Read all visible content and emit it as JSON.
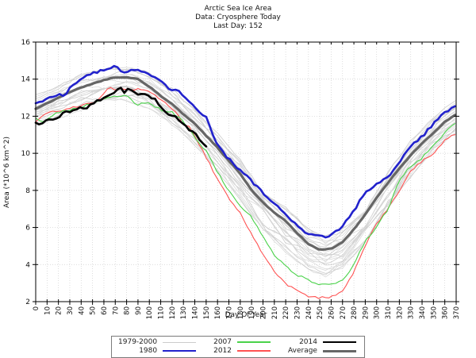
{
  "title": {
    "line1": "Arctic Sea Ice Area",
    "line2": "Data: Cryosphere Today",
    "line3": "Last Day: 152"
  },
  "chart_data": {
    "type": "line",
    "title": "Arctic Sea Ice Area",
    "subtitle": "Data: Cryosphere Today",
    "annotation": "Last Day: 152",
    "xlabel": "Day Of Year",
    "ylabel": "Area (*10^6 km^2)",
    "xlim": [
      0,
      370
    ],
    "ylim": [
      2,
      16
    ],
    "grid": true,
    "legend_position": "bottom-outside",
    "xticks": [
      0,
      10,
      20,
      30,
      40,
      50,
      60,
      70,
      80,
      90,
      100,
      110,
      120,
      130,
      140,
      150,
      160,
      170,
      180,
      190,
      200,
      210,
      220,
      230,
      240,
      250,
      260,
      270,
      280,
      290,
      300,
      310,
      320,
      330,
      340,
      350,
      360,
      370
    ],
    "yticks": [
      2,
      4,
      6,
      8,
      10,
      12,
      14,
      16
    ],
    "series": [
      {
        "name": "1979-2000",
        "kind": "ensemble",
        "color": "#cccccc",
        "color_alt": "#dadada",
        "width": 0.8,
        "count": 22,
        "band_x": [
          0,
          20,
          40,
          60,
          80,
          100,
          120,
          140,
          160,
          180,
          200,
          220,
          240,
          255,
          270,
          290,
          310,
          330,
          350,
          370
        ],
        "band_lower": [
          11.3,
          11.8,
          12.3,
          12.7,
          12.8,
          12.4,
          11.5,
          10.4,
          9.0,
          7.4,
          5.9,
          4.6,
          3.7,
          3.3,
          3.7,
          5.2,
          7.0,
          8.7,
          10.0,
          11.0
        ],
        "band_upper": [
          13.3,
          13.8,
          14.3,
          14.6,
          14.7,
          14.4,
          13.5,
          12.4,
          11.1,
          9.7,
          8.3,
          7.1,
          6.0,
          5.6,
          6.0,
          7.2,
          9.0,
          10.7,
          12.0,
          12.9
        ]
      },
      {
        "name": "Average",
        "kind": "line",
        "color": "#666666",
        "width": 3.2,
        "points": [
          [
            0,
            12.4
          ],
          [
            10,
            12.7
          ],
          [
            20,
            13.0
          ],
          [
            30,
            13.3
          ],
          [
            40,
            13.55
          ],
          [
            50,
            13.75
          ],
          [
            60,
            13.95
          ],
          [
            70,
            14.1
          ],
          [
            80,
            14.1
          ],
          [
            90,
            14.0
          ],
          [
            100,
            13.6
          ],
          [
            110,
            13.1
          ],
          [
            120,
            12.65
          ],
          [
            130,
            12.1
          ],
          [
            140,
            11.6
          ],
          [
            150,
            10.95
          ],
          [
            160,
            10.3
          ],
          [
            170,
            9.6
          ],
          [
            180,
            8.9
          ],
          [
            190,
            8.0
          ],
          [
            200,
            7.35
          ],
          [
            210,
            6.8
          ],
          [
            220,
            6.35
          ],
          [
            230,
            5.7
          ],
          [
            240,
            5.1
          ],
          [
            250,
            4.8
          ],
          [
            260,
            4.85
          ],
          [
            270,
            5.2
          ],
          [
            280,
            5.9
          ],
          [
            290,
            6.7
          ],
          [
            300,
            7.6
          ],
          [
            310,
            8.4
          ],
          [
            320,
            9.2
          ],
          [
            330,
            9.9
          ],
          [
            340,
            10.55
          ],
          [
            350,
            11.1
          ],
          [
            360,
            11.7
          ],
          [
            370,
            12.1
          ]
        ]
      },
      {
        "name": "2012",
        "kind": "line",
        "color": "#ff5252",
        "width": 1.1,
        "points": [
          [
            0,
            11.7
          ],
          [
            10,
            12.25
          ],
          [
            20,
            12.2
          ],
          [
            30,
            12.45
          ],
          [
            40,
            12.6
          ],
          [
            50,
            12.7
          ],
          [
            55,
            12.9
          ],
          [
            60,
            13.25
          ],
          [
            65,
            13.6
          ],
          [
            70,
            13.45
          ],
          [
            80,
            13.5
          ],
          [
            90,
            13.45
          ],
          [
            100,
            13.3
          ],
          [
            110,
            12.9
          ],
          [
            120,
            12.4
          ],
          [
            125,
            12.15
          ],
          [
            130,
            11.45
          ],
          [
            135,
            11.4
          ],
          [
            140,
            10.9
          ],
          [
            150,
            9.8
          ],
          [
            160,
            8.6
          ],
          [
            170,
            7.6
          ],
          [
            180,
            6.8
          ],
          [
            190,
            5.6
          ],
          [
            200,
            4.6
          ],
          [
            210,
            3.65
          ],
          [
            220,
            2.95
          ],
          [
            230,
            2.6
          ],
          [
            240,
            2.3
          ],
          [
            250,
            2.2
          ],
          [
            260,
            2.25
          ],
          [
            270,
            2.55
          ],
          [
            280,
            3.6
          ],
          [
            290,
            5.0
          ],
          [
            300,
            6.2
          ],
          [
            310,
            7.0
          ],
          [
            320,
            8.0
          ],
          [
            330,
            9.0
          ],
          [
            340,
            9.6
          ],
          [
            350,
            10.0
          ],
          [
            360,
            10.7
          ],
          [
            370,
            11.1
          ]
        ]
      },
      {
        "name": "2007",
        "kind": "line",
        "color": "#4ad24a",
        "width": 1.1,
        "points": [
          [
            0,
            11.9
          ],
          [
            5,
            11.7
          ],
          [
            10,
            11.85
          ],
          [
            20,
            12.2
          ],
          [
            30,
            12.35
          ],
          [
            40,
            12.5
          ],
          [
            50,
            12.7
          ],
          [
            60,
            12.9
          ],
          [
            70,
            13.05
          ],
          [
            80,
            13.1
          ],
          [
            85,
            12.8
          ],
          [
            90,
            12.65
          ],
          [
            100,
            12.7
          ],
          [
            110,
            12.35
          ],
          [
            120,
            12.2
          ],
          [
            130,
            11.7
          ],
          [
            140,
            10.9
          ],
          [
            150,
            10.1
          ],
          [
            160,
            9.0
          ],
          [
            170,
            7.95
          ],
          [
            180,
            7.15
          ],
          [
            190,
            6.55
          ],
          [
            200,
            5.5
          ],
          [
            210,
            4.55
          ],
          [
            220,
            3.9
          ],
          [
            230,
            3.45
          ],
          [
            240,
            3.15
          ],
          [
            250,
            2.95
          ],
          [
            260,
            2.95
          ],
          [
            270,
            3.15
          ],
          [
            280,
            4.0
          ],
          [
            290,
            5.3
          ],
          [
            300,
            6.0
          ],
          [
            310,
            7.0
          ],
          [
            320,
            8.6
          ],
          [
            330,
            9.3
          ],
          [
            340,
            9.75
          ],
          [
            350,
            10.5
          ],
          [
            360,
            11.1
          ],
          [
            370,
            11.7
          ]
        ]
      },
      {
        "name": "1980",
        "kind": "line",
        "color": "#2222cc",
        "width": 2.6,
        "points": [
          [
            0,
            12.7
          ],
          [
            10,
            12.95
          ],
          [
            20,
            13.2
          ],
          [
            25,
            13.1
          ],
          [
            30,
            13.5
          ],
          [
            40,
            14.0
          ],
          [
            50,
            14.3
          ],
          [
            60,
            14.5
          ],
          [
            65,
            14.6
          ],
          [
            70,
            14.7
          ],
          [
            78,
            14.35
          ],
          [
            85,
            14.5
          ],
          [
            90,
            14.55
          ],
          [
            100,
            14.25
          ],
          [
            105,
            14.1
          ],
          [
            110,
            13.9
          ],
          [
            115,
            13.6
          ],
          [
            120,
            13.4
          ],
          [
            127,
            13.35
          ],
          [
            130,
            13.1
          ],
          [
            140,
            12.5
          ],
          [
            150,
            11.9
          ],
          [
            160,
            10.4
          ],
          [
            170,
            9.7
          ],
          [
            180,
            9.1
          ],
          [
            190,
            8.5
          ],
          [
            200,
            7.87
          ],
          [
            210,
            7.25
          ],
          [
            220,
            6.7
          ],
          [
            230,
            6.1
          ],
          [
            240,
            5.65
          ],
          [
            250,
            5.5
          ],
          [
            255,
            5.45
          ],
          [
            260,
            5.55
          ],
          [
            270,
            6.05
          ],
          [
            280,
            6.9
          ],
          [
            290,
            7.9
          ],
          [
            300,
            8.3
          ],
          [
            310,
            8.7
          ],
          [
            320,
            9.55
          ],
          [
            330,
            10.35
          ],
          [
            340,
            10.9
          ],
          [
            350,
            11.6
          ],
          [
            360,
            12.2
          ],
          [
            370,
            12.6
          ]
        ]
      },
      {
        "name": "2014",
        "kind": "line",
        "color": "#000000",
        "width": 2.6,
        "points": [
          [
            0,
            11.65
          ],
          [
            5,
            11.5
          ],
          [
            10,
            11.8
          ],
          [
            15,
            11.75
          ],
          [
            20,
            12.0
          ],
          [
            25,
            12.2
          ],
          [
            30,
            12.2
          ],
          [
            35,
            12.3
          ],
          [
            40,
            12.45
          ],
          [
            45,
            12.5
          ],
          [
            50,
            12.6
          ],
          [
            55,
            12.9
          ],
          [
            60,
            12.95
          ],
          [
            65,
            13.1
          ],
          [
            70,
            13.3
          ],
          [
            75,
            13.5
          ],
          [
            78,
            13.3
          ],
          [
            82,
            13.45
          ],
          [
            85,
            13.4
          ],
          [
            90,
            13.2
          ],
          [
            95,
            13.25
          ],
          [
            100,
            13.1
          ],
          [
            105,
            12.9
          ],
          [
            110,
            12.55
          ],
          [
            115,
            12.2
          ],
          [
            120,
            12.1
          ],
          [
            125,
            11.9
          ],
          [
            130,
            11.55
          ],
          [
            135,
            11.3
          ],
          [
            140,
            11.1
          ],
          [
            145,
            10.7
          ],
          [
            150,
            10.3
          ],
          [
            152,
            10.05
          ]
        ]
      }
    ],
    "legend": {
      "items": [
        {
          "label": "1979-2000",
          "series": "1979-2000"
        },
        {
          "label": "1980",
          "series": "1980"
        },
        {
          "label": "2007",
          "series": "2007"
        },
        {
          "label": "2012",
          "series": "2012"
        },
        {
          "label": "2014",
          "series": "2014"
        },
        {
          "label": "Average",
          "series": "Average"
        }
      ]
    }
  }
}
